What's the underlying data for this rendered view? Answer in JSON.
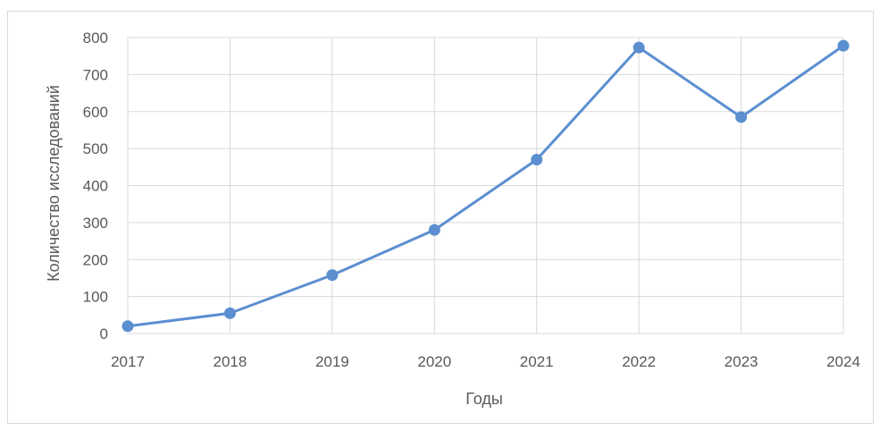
{
  "chart_data": {
    "type": "line",
    "x": [
      "2017",
      "2018",
      "2019",
      "2020",
      "2021",
      "2022",
      "2023",
      "2024"
    ],
    "series": [
      {
        "values": [
          20,
          55,
          158,
          280,
          470,
          773,
          585,
          778
        ]
      }
    ],
    "xlabel": "Годы",
    "ylabel": "Количество исследований",
    "ylim": [
      0,
      800
    ],
    "yticks": [
      0,
      100,
      200,
      300,
      400,
      500,
      600,
      700,
      800
    ],
    "grid": true,
    "legend": "none",
    "colors": {
      "series": "#5b8fd0",
      "grid": "#d9d9d9",
      "text": "#595959"
    }
  }
}
